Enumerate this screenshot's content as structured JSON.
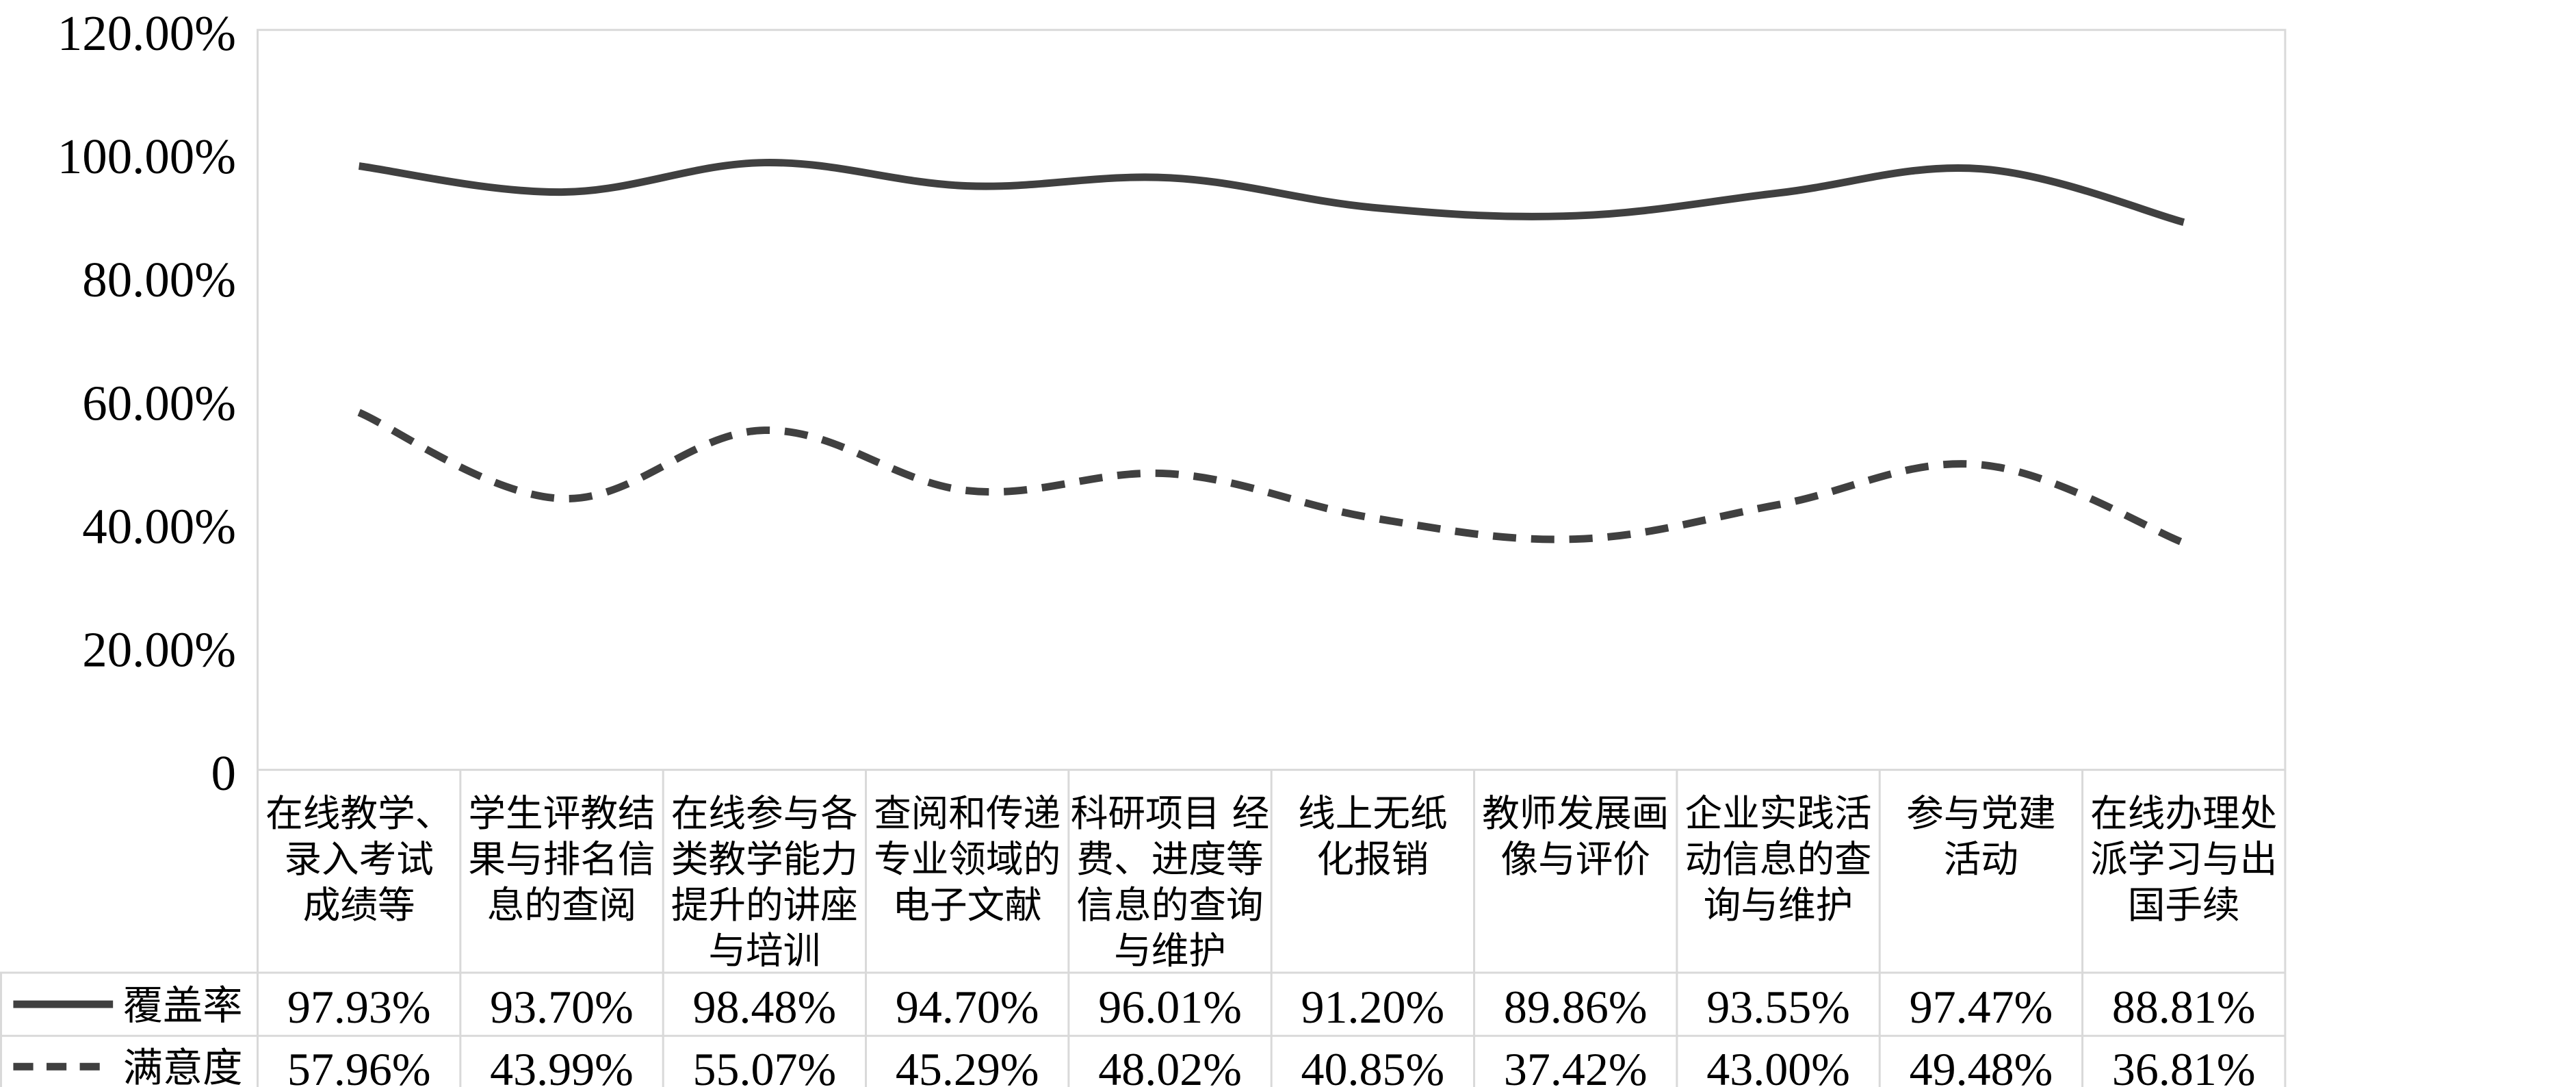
{
  "chart_data": {
    "type": "line",
    "title": "",
    "xlabel": "",
    "ylabel": "",
    "ylim": [
      0,
      120
    ],
    "yticks": [
      "0",
      "20.00%",
      "40.00%",
      "60.00%",
      "80.00%",
      "100.00%",
      "120.00%"
    ],
    "ytick_values": [
      0,
      20,
      40,
      60,
      80,
      100,
      120
    ],
    "grid": false,
    "legend": "data-table",
    "categories": [
      [
        "在线教学、",
        "录入考试",
        "成绩等"
      ],
      [
        "学生评教结",
        "果与排名信",
        "息的查阅"
      ],
      [
        "在线参与各",
        "类教学能力",
        "提升的讲座",
        "与培训"
      ],
      [
        "查阅和传递",
        "专业领域的",
        "电子文献"
      ],
      [
        "科研项目 经",
        "费、进度等",
        "信息的查询",
        "与维护"
      ],
      [
        "线上无纸",
        "化报销"
      ],
      [
        "教师发展画",
        "像与评价"
      ],
      [
        "企业实践活",
        "动信息的查",
        "询与维护"
      ],
      [
        "参与党建",
        "活动"
      ],
      [
        "在线办理处",
        "派学习与出",
        "国手续"
      ]
    ],
    "series": [
      {
        "name": "覆盖率",
        "style": "solid",
        "color": "#404040",
        "values": [
          97.93,
          93.7,
          98.48,
          94.7,
          96.01,
          91.2,
          89.86,
          93.55,
          97.47,
          88.81
        ],
        "labels": [
          "97.93%",
          "93.70%",
          "98.48%",
          "94.70%",
          "96.01%",
          "91.20%",
          "89.86%",
          "93.55%",
          "97.47%",
          "88.81%"
        ]
      },
      {
        "name": "满意度",
        "style": "dashed",
        "color": "#404040",
        "values": [
          57.96,
          43.99,
          55.07,
          45.29,
          48.02,
          40.85,
          37.42,
          43.0,
          49.48,
          36.81
        ],
        "labels": [
          "57.96%",
          "43.99%",
          "55.07%",
          "45.29%",
          "48.02%",
          "40.85%",
          "37.42%",
          "43.00%",
          "49.48%",
          "36.81%"
        ]
      }
    ],
    "colors": {
      "line": "#404040",
      "border": "#d9d9d9",
      "text": "#000000"
    }
  }
}
